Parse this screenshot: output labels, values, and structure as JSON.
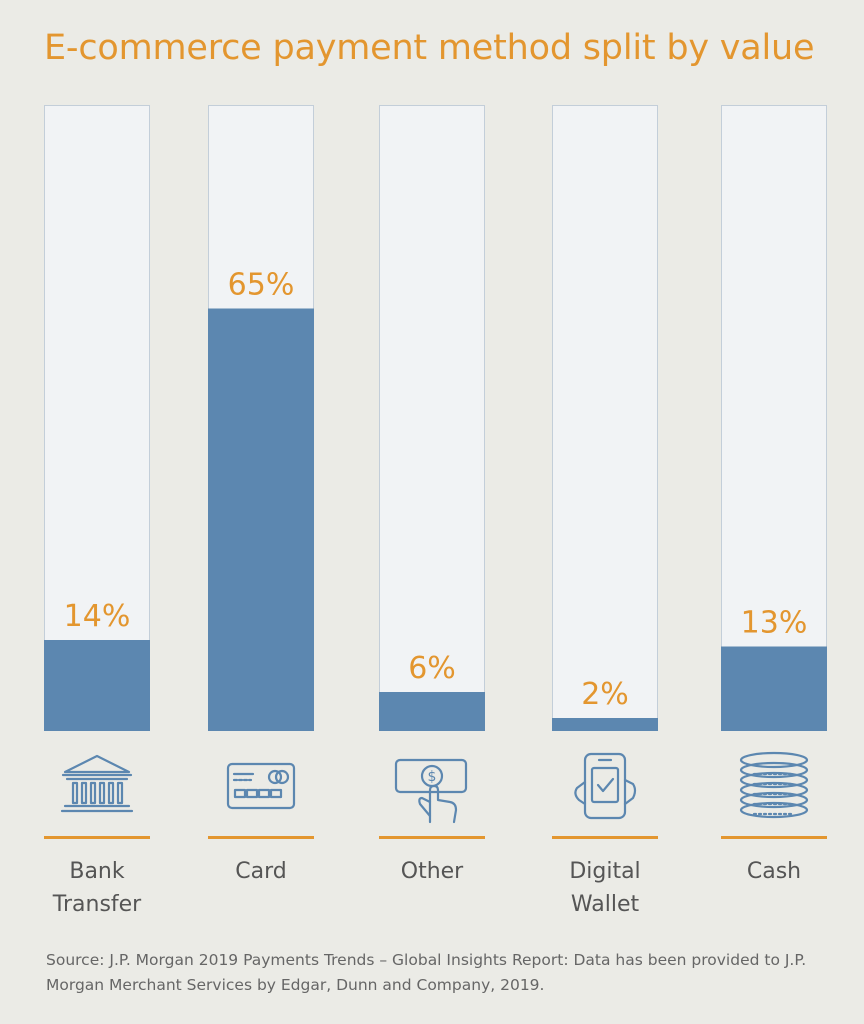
{
  "title": "E-commerce payment method split by value",
  "colors": {
    "title": "#e3962f",
    "bar": "#5c87b0",
    "track": "#f1f3f5",
    "track_border": "#c3ced9",
    "icon": "#5c87b0",
    "divider": "#e3962f",
    "label": "#555555"
  },
  "chart_data": {
    "type": "bar",
    "title": "E-commerce payment method split by value",
    "categories": [
      "Bank Transfer",
      "Card",
      "Other",
      "Digital Wallet",
      "Cash"
    ],
    "category_lines": [
      [
        "Bank",
        "Transfer"
      ],
      [
        "Card"
      ],
      [
        "Other"
      ],
      [
        "Digital",
        "Wallet"
      ],
      [
        "Cash"
      ]
    ],
    "values": [
      14,
      65,
      6,
      2,
      13
    ],
    "value_labels": [
      "14%",
      "65%",
      "6%",
      "2%",
      "13%"
    ],
    "icons": [
      "bank-icon",
      "credit-card-icon",
      "cash-payment-icon",
      "mobile-wallet-icon",
      "coins-icon"
    ],
    "ylim": [
      0,
      100
    ],
    "unit": "%",
    "grid": false,
    "legend": "none"
  },
  "source": "Source: J.P. Morgan 2019 Payments Trends – Global Insights Report: Data has been provided to J.P. Morgan Merchant Services by Edgar, Dunn and Company, 2019."
}
